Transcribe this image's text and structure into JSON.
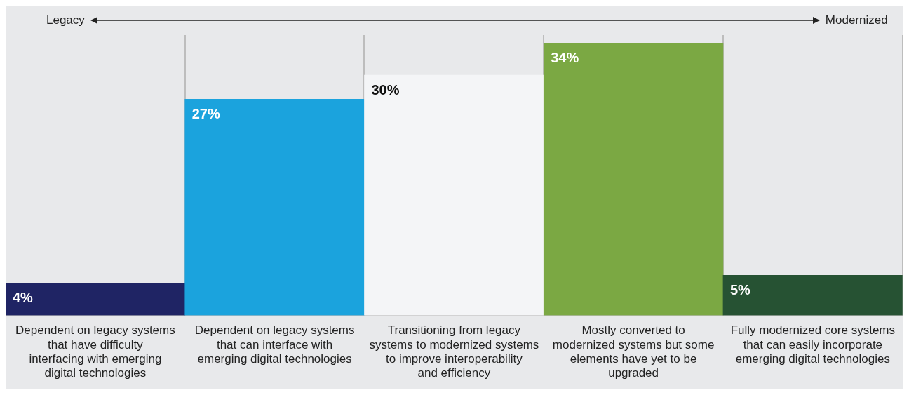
{
  "chart_data": {
    "type": "bar",
    "categories": [
      "Dependent on legacy systems that have difficulty interfacing with emerging digital technologies",
      "Dependent on legacy systems that can interface with emerging digital technologies",
      "Transitioning from legacy systems to modernized systems to improve interoperability and efficiency",
      "Mostly converted to modernized systems but some elements have yet to be upgraded",
      "Fully modernized core systems that can easily incorporate emerging digital technologies"
    ],
    "values": [
      4,
      27,
      30,
      34,
      5
    ],
    "colors": [
      "#1f2464",
      "#1ba3dd",
      "#f4f5f7",
      "#7ba843",
      "#265233"
    ],
    "value_labels": [
      "4%",
      "27%",
      "30%",
      "34%",
      "5%"
    ],
    "grid": "x",
    "annotations": [
      "Legacy",
      "Modernized"
    ]
  }
}
